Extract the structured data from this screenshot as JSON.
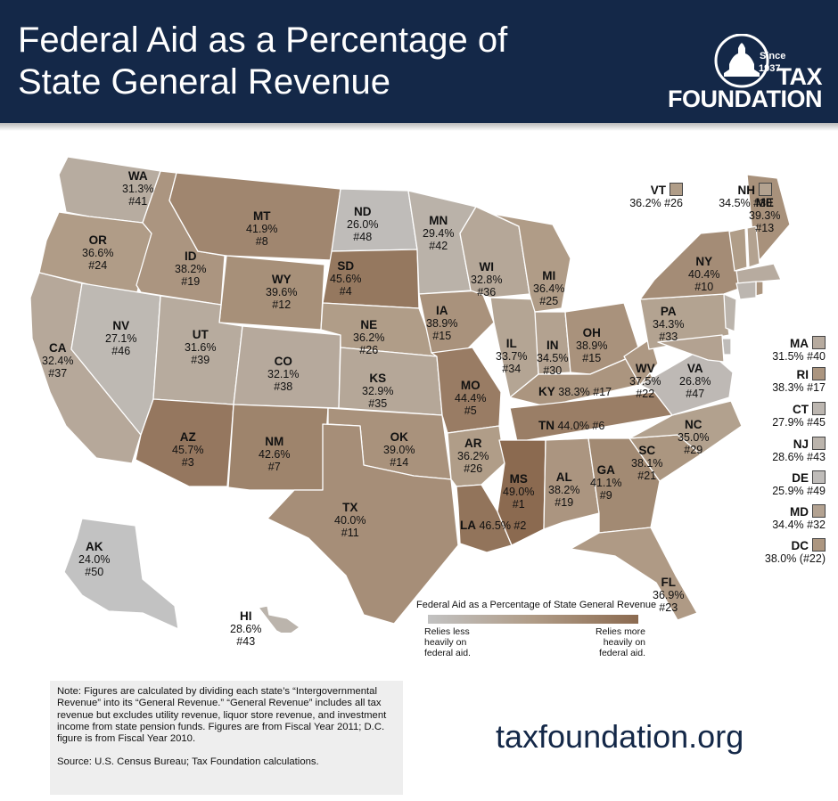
{
  "header": {
    "title": "Federal Aid as a Percentage of State General Revenue"
  },
  "logo": {
    "badge_line1": "Since",
    "badge_line2": "1937",
    "name_line1": "TAX",
    "name_line2": "FOUNDATION"
  },
  "colors": {
    "header_bg": "#142848",
    "scale_low": "#c2c2c2",
    "scale_high": "#8b6a50"
  },
  "states": [
    {
      "code": "WA",
      "value": "31.3%",
      "rank": "#41"
    },
    {
      "code": "OR",
      "value": "36.6%",
      "rank": "#24"
    },
    {
      "code": "CA",
      "value": "32.4%",
      "rank": "#37"
    },
    {
      "code": "ID",
      "value": "38.2%",
      "rank": "#19"
    },
    {
      "code": "NV",
      "value": "27.1%",
      "rank": "#46"
    },
    {
      "code": "MT",
      "value": "41.9%",
      "rank": "#8"
    },
    {
      "code": "WY",
      "value": "39.6%",
      "rank": "#12"
    },
    {
      "code": "UT",
      "value": "31.6%",
      "rank": "#39"
    },
    {
      "code": "AZ",
      "value": "45.7%",
      "rank": "#3"
    },
    {
      "code": "CO",
      "value": "32.1%",
      "rank": "#38"
    },
    {
      "code": "NM",
      "value": "42.6%",
      "rank": "#7"
    },
    {
      "code": "ND",
      "value": "26.0%",
      "rank": "#48"
    },
    {
      "code": "SD",
      "value": "45.6%",
      "rank": "#4"
    },
    {
      "code": "NE",
      "value": "36.2%",
      "rank": "#26"
    },
    {
      "code": "KS",
      "value": "32.9%",
      "rank": "#35"
    },
    {
      "code": "OK",
      "value": "39.0%",
      "rank": "#14"
    },
    {
      "code": "TX",
      "value": "40.0%",
      "rank": "#11"
    },
    {
      "code": "MN",
      "value": "29.4%",
      "rank": "#42"
    },
    {
      "code": "IA",
      "value": "38.9%",
      "rank": "#15"
    },
    {
      "code": "MO",
      "value": "44.4%",
      "rank": "#5"
    },
    {
      "code": "AR",
      "value": "36.2%",
      "rank": "#26"
    },
    {
      "code": "LA",
      "value": "46.5%",
      "rank": "#2"
    },
    {
      "code": "WI",
      "value": "32.8%",
      "rank": "#36"
    },
    {
      "code": "IL",
      "value": "33.7%",
      "rank": "#34"
    },
    {
      "code": "MI",
      "value": "36.4%",
      "rank": "#25"
    },
    {
      "code": "IN",
      "value": "34.5%",
      "rank": "#30"
    },
    {
      "code": "OH",
      "value": "38.9%",
      "rank": "#15"
    },
    {
      "code": "KY",
      "value": "38.3%",
      "rank": "#17"
    },
    {
      "code": "TN",
      "value": "44.0%",
      "rank": "#6"
    },
    {
      "code": "MS",
      "value": "49.0%",
      "rank": "#1"
    },
    {
      "code": "AL",
      "value": "38.2%",
      "rank": "#19"
    },
    {
      "code": "GA",
      "value": "41.1%",
      "rank": "#9"
    },
    {
      "code": "FL",
      "value": "36.9%",
      "rank": "#23"
    },
    {
      "code": "SC",
      "value": "38.1%",
      "rank": "#21"
    },
    {
      "code": "NC",
      "value": "35.0%",
      "rank": "#29"
    },
    {
      "code": "VA",
      "value": "26.8%",
      "rank": "#47"
    },
    {
      "code": "WV",
      "value": "37.5%",
      "rank": "#22"
    },
    {
      "code": "PA",
      "value": "34.3%",
      "rank": "#33"
    },
    {
      "code": "NY",
      "value": "40.4%",
      "rank": "#10"
    },
    {
      "code": "ME",
      "value": "39.3%",
      "rank": "#13"
    },
    {
      "code": "AK",
      "value": "24.0%",
      "rank": "#50"
    },
    {
      "code": "HI",
      "value": "28.6%",
      "rank": "#43"
    }
  ],
  "small_states": [
    {
      "code": "VT",
      "value": "36.2%",
      "rank": "#26"
    },
    {
      "code": "NH",
      "value": "34.5%",
      "rank": "#30"
    },
    {
      "code": "MA",
      "value": "31.5%",
      "rank": "#40"
    },
    {
      "code": "RI",
      "value": "38.3%",
      "rank": "#17"
    },
    {
      "code": "CT",
      "value": "27.9%",
      "rank": "#45"
    },
    {
      "code": "NJ",
      "value": "28.6%",
      "rank": "#43"
    },
    {
      "code": "DE",
      "value": "25.9%",
      "rank": "#49"
    },
    {
      "code": "MD",
      "value": "34.4%",
      "rank": "#32"
    },
    {
      "code": "DC",
      "value": "38.0%",
      "rank": "(#22)"
    }
  ],
  "legend": {
    "title": "Federal Aid as a Percentage of State General Revenue",
    "low_label": [
      "Relies less",
      "heavily on",
      "federal aid."
    ],
    "high_label": [
      "Relies more",
      "heavily on",
      "federal aid."
    ]
  },
  "note": {
    "text": "Note: Figures are calculated by dividing each state’s “Intergovernmental Revenue” into its “General Revenue.” “General Revenue” includes all tax revenue but excludes utility revenue, liquor store revenue, and investment income from state pension funds. Figures are from Fiscal Year 2011; D.C. figure is from Fiscal Year 2010.",
    "source": "Source: U.S. Census Bureau; Tax Foundation calculations."
  },
  "footer": {
    "url": "taxfoundation.org"
  }
}
